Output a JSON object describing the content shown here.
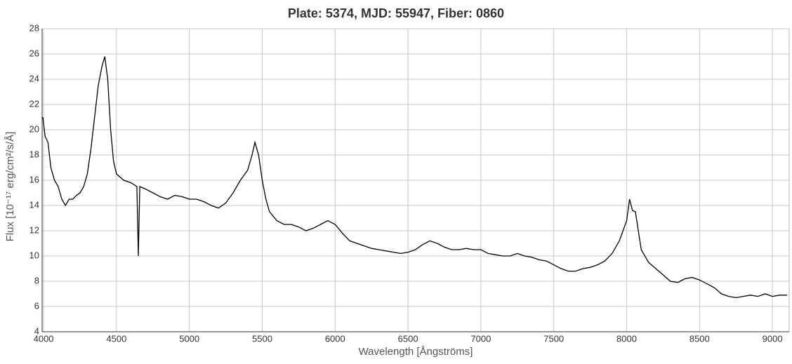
{
  "chart_data": {
    "type": "line",
    "title": "Plate: 5374, MJD: 55947, Fiber: 0860",
    "xlabel": "Wavelength [Ångströms]",
    "ylabel": "Flux [10⁻¹⁷ erg/cm²/s/Å]",
    "xlim": [
      3990,
      9115
    ],
    "ylim": [
      4,
      28
    ],
    "xticks": [
      4000,
      4500,
      5000,
      5500,
      6000,
      6500,
      7000,
      7500,
      8000,
      8500,
      9000
    ],
    "yticks": [
      4,
      6,
      8,
      10,
      12,
      14,
      16,
      18,
      20,
      22,
      24,
      26,
      28
    ],
    "grid": true,
    "series": [
      {
        "color": "#000000",
        "x": [
          3995,
          4010,
          4030,
          4050,
          4075,
          4100,
          4125,
          4150,
          4175,
          4200,
          4225,
          4250,
          4275,
          4300,
          4325,
          4350,
          4375,
          4400,
          4420,
          4440,
          4460,
          4480,
          4500,
          4550,
          4600,
          4640,
          4650,
          4660,
          4700,
          4750,
          4800,
          4850,
          4900,
          4950,
          5000,
          5050,
          5100,
          5150,
          5200,
          5250,
          5300,
          5350,
          5400,
          5430,
          5450,
          5475,
          5500,
          5525,
          5550,
          5600,
          5650,
          5700,
          5750,
          5800,
          5850,
          5900,
          5950,
          6000,
          6050,
          6100,
          6150,
          6200,
          6250,
          6300,
          6350,
          6400,
          6450,
          6500,
          6550,
          6600,
          6650,
          6700,
          6750,
          6800,
          6850,
          6900,
          6950,
          7000,
          7050,
          7100,
          7150,
          7200,
          7250,
          7300,
          7350,
          7400,
          7450,
          7500,
          7550,
          7600,
          7650,
          7700,
          7750,
          7800,
          7850,
          7900,
          7950,
          8000,
          8020,
          8040,
          8060,
          8080,
          8100,
          8150,
          8200,
          8250,
          8300,
          8350,
          8400,
          8450,
          8500,
          8550,
          8600,
          8650,
          8700,
          8750,
          8800,
          8850,
          8900,
          8950,
          9000,
          9050,
          9100
        ],
        "values": [
          21,
          19.5,
          19,
          17,
          16,
          15.5,
          14.5,
          14,
          14.5,
          14.5,
          14.8,
          15,
          15.5,
          16.5,
          18.5,
          21,
          23.5,
          25,
          25.8,
          24,
          20,
          17.5,
          16.5,
          16,
          15.8,
          15.5,
          10,
          15.5,
          15.3,
          15,
          14.7,
          14.5,
          14.8,
          14.7,
          14.5,
          14.5,
          14.3,
          14,
          13.8,
          14.2,
          15,
          16,
          16.8,
          18,
          19,
          18,
          16,
          14.5,
          13.5,
          12.8,
          12.5,
          12.5,
          12.3,
          12,
          12.2,
          12.5,
          12.8,
          12.5,
          11.8,
          11.2,
          11,
          10.8,
          10.6,
          10.5,
          10.4,
          10.3,
          10.2,
          10.3,
          10.5,
          10.9,
          11.2,
          11,
          10.7,
          10.5,
          10.5,
          10.6,
          10.5,
          10.5,
          10.2,
          10.1,
          10,
          10,
          10.2,
          10,
          9.9,
          9.7,
          9.6,
          9.3,
          9,
          8.8,
          8.8,
          9,
          9.1,
          9.3,
          9.6,
          10.2,
          11.2,
          12.8,
          14.5,
          13.6,
          13.5,
          12,
          10.5,
          9.5,
          9,
          8.5,
          8,
          7.9,
          8.2,
          8.3,
          8.1,
          7.8,
          7.5,
          7,
          6.8,
          6.7,
          6.8,
          6.9,
          6.8,
          7,
          6.8,
          6.9,
          6.9
        ]
      }
    ]
  }
}
